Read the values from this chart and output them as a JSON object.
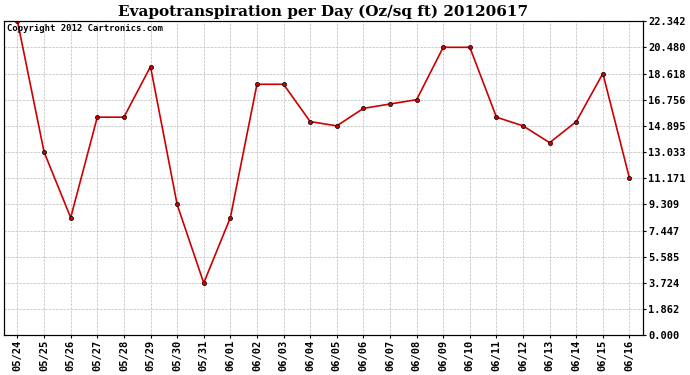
{
  "title": "Evapotranspiration per Day (Oz/sq ft) 20120617",
  "copyright_text": "Copyright 2012 Cartronics.com",
  "x_labels": [
    "05/24",
    "05/25",
    "05/26",
    "05/27",
    "05/28",
    "05/29",
    "05/30",
    "05/31",
    "06/01",
    "06/02",
    "06/03",
    "06/04",
    "06/05",
    "06/06",
    "06/07",
    "06/08",
    "06/09",
    "06/10",
    "06/11",
    "06/12",
    "06/13",
    "06/14",
    "06/15",
    "06/16"
  ],
  "y_values": [
    22.342,
    13.033,
    8.371,
    15.514,
    15.514,
    19.108,
    9.309,
    3.724,
    8.371,
    17.852,
    17.852,
    15.2,
    14.895,
    16.138,
    16.45,
    16.756,
    20.48,
    20.48,
    15.514,
    14.895,
    13.7,
    15.2,
    18.618,
    11.171
  ],
  "line_color": "#cc0000",
  "marker_color": "#000000",
  "background_color": "#ffffff",
  "grid_color": "#bbbbbb",
  "y_min": 0.0,
  "y_max": 22.342,
  "y_ticks": [
    0.0,
    1.862,
    3.724,
    5.585,
    7.447,
    9.309,
    11.171,
    13.033,
    14.895,
    16.756,
    18.618,
    20.48,
    22.342
  ],
  "title_fontsize": 11,
  "label_fontsize": 7.5,
  "copyright_fontsize": 6.5
}
